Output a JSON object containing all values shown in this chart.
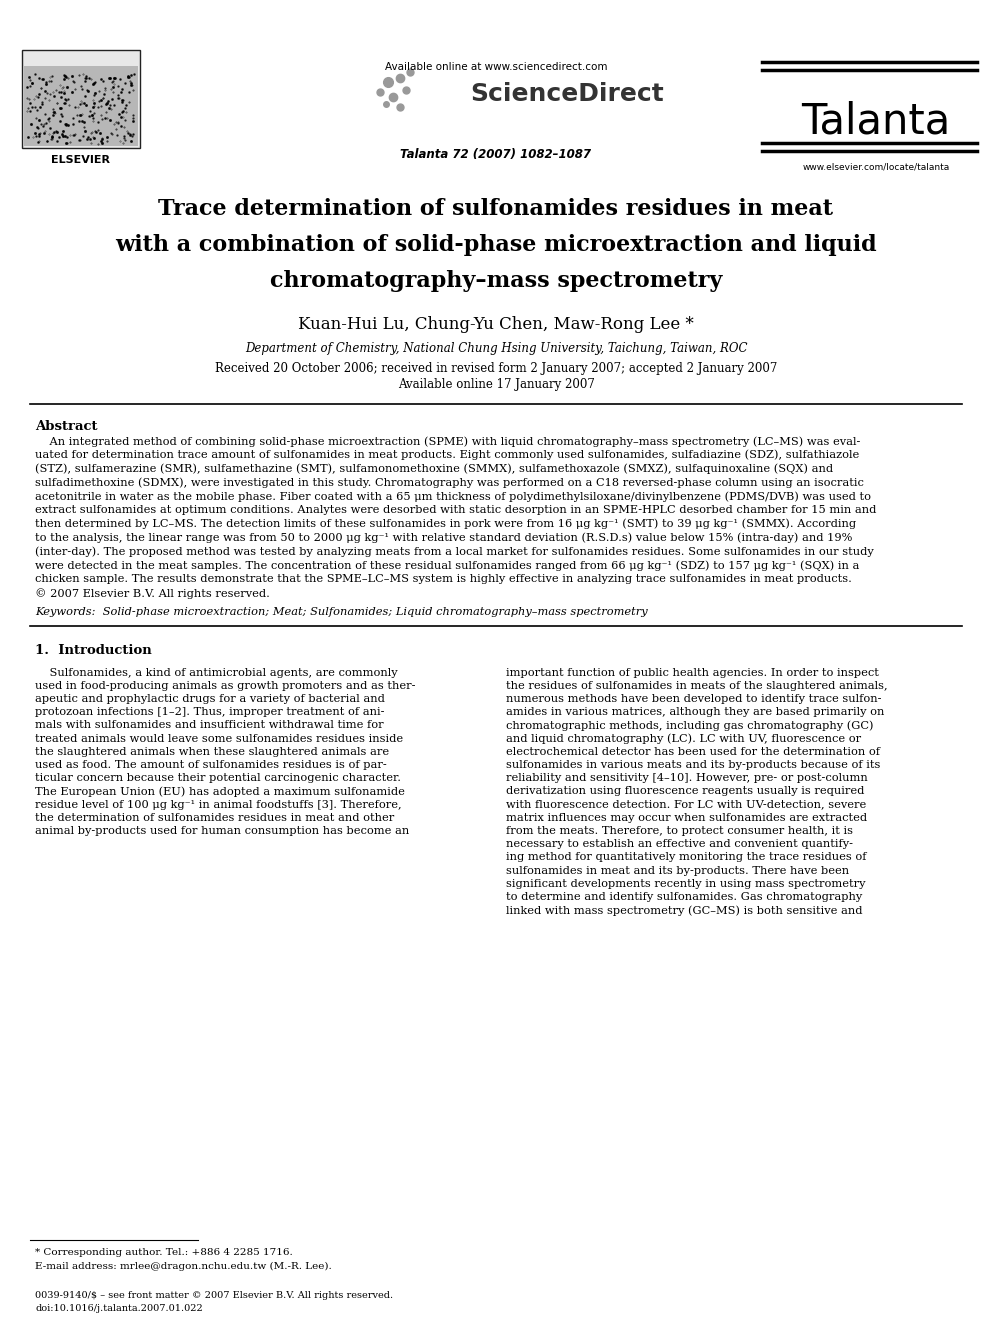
{
  "bg_color": "#ffffff",
  "header": {
    "available_online": "Available online at www.sciencedirect.com",
    "journal_name": "Talanta",
    "journal_issue": "Talanta 72 (2007) 1082–1087",
    "website": "www.elsevier.com/locate/talanta"
  },
  "title_lines": [
    "Trace determination of sulfonamides residues in meat",
    "with a combination of solid-phase microextraction and liquid",
    "chromatography–mass spectrometry"
  ],
  "authors": "Kuan-Hui Lu, Chung-Yu Chen, Maw-Rong Lee *",
  "affiliation": "Department of Chemistry, National Chung Hsing University, Taichung, Taiwan, ROC",
  "received": "Received 20 October 2006; received in revised form 2 January 2007; accepted 2 January 2007",
  "available": "Available online 17 January 2007",
  "abstract_title": "Abstract",
  "keywords": "Keywords:  Solid-phase microextraction; Meat; Sulfonamides; Liquid chromatography–mass spectrometry",
  "section1_title": "1.  Introduction",
  "footnote_star": "* Corresponding author. Tel.: +886 4 2285 1716.",
  "footnote_email": "E-mail address: mrlee@dragon.nchu.edu.tw (M.-R. Lee).",
  "footer_line1": "0039-9140/$ – see front matter © 2007 Elsevier B.V. All rights reserved.",
  "footer_line2": "doi:10.1016/j.talanta.2007.01.022",
  "abstract_lines": [
    "    An integrated method of combining solid-phase microextraction (SPME) with liquid chromatography–mass spectrometry (LC–MS) was eval-",
    "uated for determination trace amount of sulfonamides in meat products. Eight commonly used sulfonamides, sulfadiazine (SDZ), sulfathiazole",
    "(STZ), sulfamerazine (SMR), sulfamethazine (SMT), sulfamonomethoxine (SMMX), sulfamethoxazole (SMXZ), sulfaquinoxaline (SQX) and",
    "sulfadimethoxine (SDMX), were investigated in this study. Chromatography was performed on a C18 reversed-phase column using an isocratic",
    "acetonitrile in water as the mobile phase. Fiber coated with a 65 μm thickness of polydimethylsiloxane/divinylbenzene (PDMS/DVB) was used to",
    "extract sulfonamides at optimum conditions. Analytes were desorbed with static desorption in an SPME-HPLC desorbed chamber for 15 min and",
    "then determined by LC–MS. The detection limits of these sulfonamides in pork were from 16 μg kg⁻¹ (SMT) to 39 μg kg⁻¹ (SMMX). According",
    "to the analysis, the linear range was from 50 to 2000 μg kg⁻¹ with relative standard deviation (R.S.D.s) value below 15% (intra-day) and 19%",
    "(inter-day). The proposed method was tested by analyzing meats from a local market for sulfonamides residues. Some sulfonamides in our study",
    "were detected in the meat samples. The concentration of these residual sulfonamides ranged from 66 μg kg⁻¹ (SDZ) to 157 μg kg⁻¹ (SQX) in a",
    "chicken sample. The results demonstrate that the SPME–LC–MS system is highly effective in analyzing trace sulfonamides in meat products.",
    "© 2007 Elsevier B.V. All rights reserved."
  ],
  "col1_lines": [
    "    Sulfonamides, a kind of antimicrobial agents, are commonly",
    "used in food-producing animals as growth promoters and as ther-",
    "apeutic and prophylactic drugs for a variety of bacterial and",
    "protozoan infections [1–2]. Thus, improper treatment of ani-",
    "mals with sulfonamides and insufficient withdrawal time for",
    "treated animals would leave some sulfonamides residues inside",
    "the slaughtered animals when these slaughtered animals are",
    "used as food. The amount of sulfonamides residues is of par-",
    "ticular concern because their potential carcinogenic character.",
    "The European Union (EU) has adopted a maximum sulfonamide",
    "residue level of 100 μg kg⁻¹ in animal foodstuffs [3]. Therefore,",
    "the determination of sulfonamides residues in meat and other",
    "animal by-products used for human consumption has become an"
  ],
  "col2_lines": [
    "important function of public health agencies. In order to inspect",
    "the residues of sulfonamides in meats of the slaughtered animals,",
    "numerous methods have been developed to identify trace sulfon-",
    "amides in various matrices, although they are based primarily on",
    "chromatographic methods, including gas chromatography (GC)",
    "and liquid chromatography (LC). LC with UV, fluorescence or",
    "electrochemical detector has been used for the determination of",
    "sulfonamides in various meats and its by-products because of its",
    "reliability and sensitivity [4–10]. However, pre- or post-column",
    "derivatization using fluorescence reagents usually is required",
    "with fluorescence detection. For LC with UV-detection, severe",
    "matrix influences may occur when sulfonamides are extracted",
    "from the meats. Therefore, to protect consumer health, it is",
    "necessary to establish an effective and convenient quantify-",
    "ing method for quantitatively monitoring the trace residues of",
    "sulfonamides in meat and its by-products. There have been",
    "significant developments recently in using mass spectrometry",
    "to determine and identify sulfonamides. Gas chromatography",
    "linked with mass spectrometry (GC–MS) is both sensitive and"
  ]
}
